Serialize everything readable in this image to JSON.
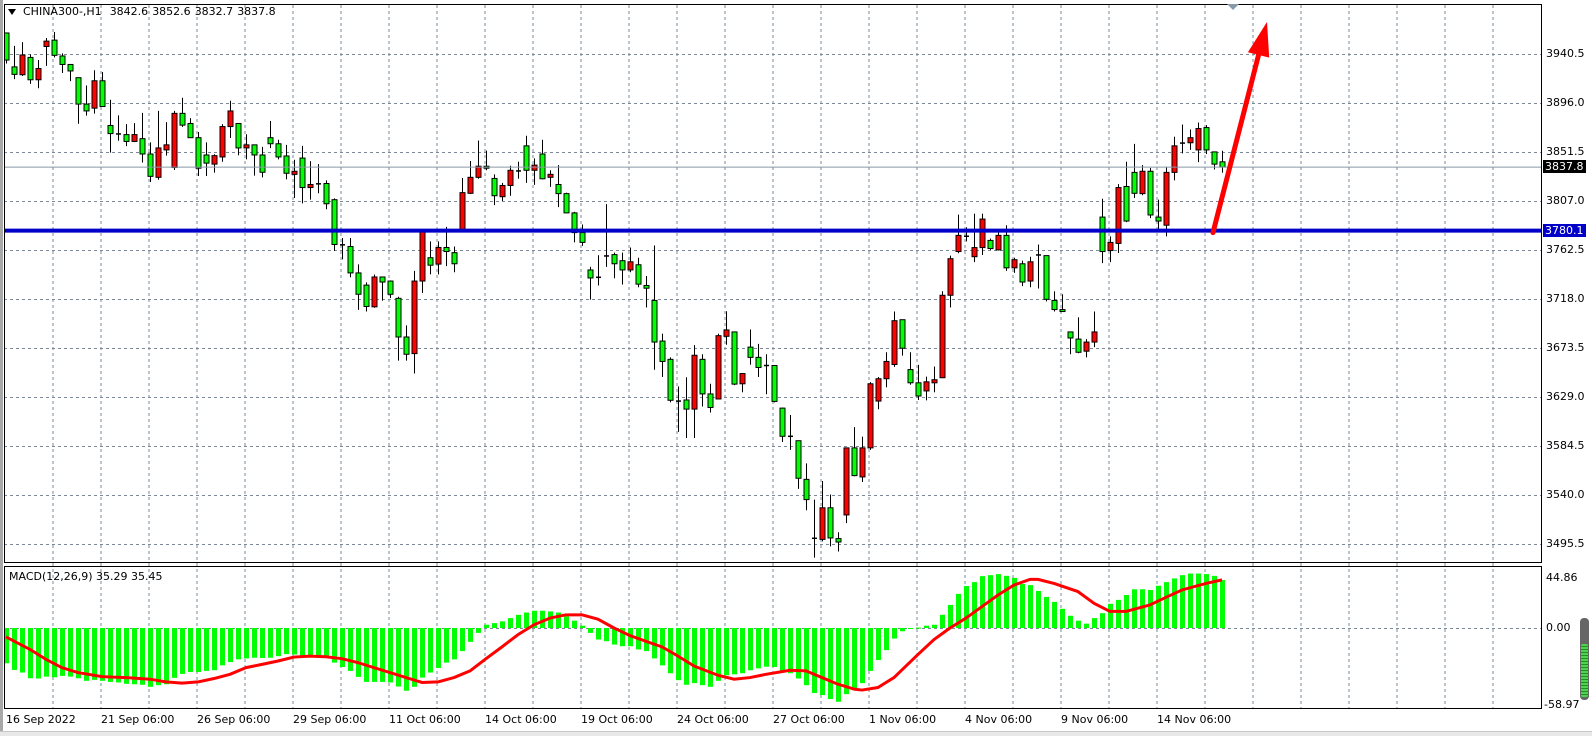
{
  "header": {
    "symbol_timeframe": "CHINA300-,H1",
    "open": "3842.6",
    "high": "3852.6",
    "low": "3832.7",
    "close": "3837.8"
  },
  "price_axis": {
    "labels": [
      "3940.5",
      "3896.0",
      "3851.5",
      "3807.0",
      "3762.5",
      "3718.0",
      "3673.5",
      "3629.0",
      "3584.5",
      "3540.0",
      "3495.5"
    ]
  },
  "current_price": {
    "value": 3837.8,
    "label": "3837.8"
  },
  "horizontal_line": {
    "value": 3780.1,
    "label": "3780.1",
    "color": "#0000c8"
  },
  "macd": {
    "label": "MACD(12,26,9)",
    "main_value": "35.29",
    "signal_value": "35.45",
    "axis_labels": [
      "44.86",
      "0.00",
      "-58.97"
    ],
    "max": 44.86,
    "min": -58.97
  },
  "time_labels": [
    "16 Sep 2022",
    "21 Sep 06:00",
    "26 Sep 06:00",
    "29 Sep 06:00",
    "11 Oct 06:00",
    "14 Oct 06:00",
    "19 Oct 06:00",
    "24 Oct 06:00",
    "27 Oct 06:00",
    "1 Nov 06:00",
    "4 Nov 06:00",
    "9 Nov 06:00",
    "14 Nov 06:00"
  ],
  "colors": {
    "bull_candle": "#ff0000",
    "bear_candle": "#00ff00",
    "histogram": "#00ff00",
    "signal_line": "#ff0000",
    "grid": "#7a8898",
    "current_price_line": "#8a98a8",
    "arrow": "#ff0000"
  },
  "annotations": {
    "arrow": "red up arrow from horizontal line",
    "arrow_color": "#ff0000"
  },
  "chart_data": {
    "type": "candlestick",
    "symbol": "CHINA300-",
    "timeframe": "H1",
    "y_range": [
      3495.5,
      3940.5
    ],
    "grid": true,
    "candles_ohlc": [
      [
        3959.6,
        3960,
        3931.9,
        3935
      ],
      [
        3928.8,
        3947.9,
        3917.7,
        3922.0
      ],
      [
        3921.7,
        3951.3,
        3920.5,
        3939.6
      ],
      [
        3937.4,
        3940.2,
        3913.4,
        3917.1
      ],
      [
        3917.1,
        3935,
        3909.4,
        3927.3
      ],
      [
        3947.3,
        3955,
        3929.7,
        3952.2
      ],
      [
        3953.1,
        3960.5,
        3937.4,
        3939.3
      ],
      [
        3938.7,
        3941.1,
        3923.3,
        3931
      ],
      [
        3931,
        3931,
        3915.9,
        3925.1
      ],
      [
        3919,
        3919,
        3877.1,
        3895
      ],
      [
        3895,
        3911.9,
        3884.5,
        3888.8
      ],
      [
        3891.3,
        3925.7,
        3886.3,
        3916.2
      ],
      [
        3916.2,
        3924.2,
        3892.8,
        3892.8
      ],
      [
        3875.6,
        3899,
        3850.9,
        3868.2
      ],
      [
        3867.9,
        3884.8,
        3861.7,
        3867.9
      ],
      [
        3867.3,
        3876.8,
        3856.8,
        3861.1
      ],
      [
        3861.1,
        3877.7,
        3860.5,
        3867.3
      ],
      [
        3863.6,
        3887,
        3842,
        3849.7
      ],
      [
        3849.7,
        3860.2,
        3824.2,
        3829.4
      ],
      [
        3828.5,
        3888.8,
        3826.3,
        3855.2
      ],
      [
        3853.4,
        3878.6,
        3848.2,
        3858
      ],
      [
        3837.4,
        3888.8,
        3835.2,
        3886.6
      ],
      [
        3886.6,
        3900.8,
        3874.3,
        3875.9
      ],
      [
        3877.4,
        3882.3,
        3864.5,
        3864.5
      ],
      [
        3864.5,
        3869.7,
        3829.7,
        3836.8
      ],
      [
        3848.8,
        3860.2,
        3829.7,
        3841.4
      ],
      [
        3840.5,
        3849.4,
        3832.8,
        3848.2
      ],
      [
        3847,
        3876.8,
        3842.6,
        3874.6
      ],
      [
        3874.6,
        3898,
        3864.2,
        3888.8
      ],
      [
        3877.4,
        3877.4,
        3848.5,
        3855.2
      ],
      [
        3855.2,
        3867.6,
        3844.8,
        3858
      ],
      [
        3858,
        3858,
        3830,
        3848.8
      ],
      [
        3848.8,
        3856.2,
        3828.5,
        3833.1
      ],
      [
        3864.5,
        3879.6,
        3855,
        3859
      ],
      [
        3859,
        3862.6,
        3844.8,
        3847
      ],
      [
        3847.9,
        3858,
        3826.6,
        3832.2
      ],
      [
        3831.2,
        3844.5,
        3809.7,
        3834
      ],
      [
        3846,
        3857.1,
        3804.8,
        3819.2
      ],
      [
        3819.2,
        3843.2,
        3808.2,
        3822
      ],
      [
        3822.6,
        3840.5,
        3814,
        3822.6
      ],
      [
        3822.9,
        3825.7,
        3799.5,
        3804.5
      ],
      [
        3808.2,
        3809.4,
        3761.7,
        3767.5
      ],
      [
        3767.2,
        3773.4,
        3754,
        3767.2
      ],
      [
        3765.7,
        3773.4,
        3737.7,
        3741.7
      ],
      [
        3741.7,
        3749.4,
        3708.1,
        3722.3
      ],
      [
        3730.6,
        3733.1,
        3706.6,
        3711.2
      ],
      [
        3710.9,
        3740.1,
        3710,
        3738
      ],
      [
        3738,
        3738,
        3716.4,
        3733.4
      ],
      [
        3734.3,
        3734.9,
        3718.9,
        3722.3
      ],
      [
        3718.6,
        3720.1,
        3662,
        3683.5
      ],
      [
        3683.5,
        3694,
        3662,
        3667.8
      ],
      [
        3668.4,
        3743.5,
        3650.3,
        3734.3
      ],
      [
        3734.3,
        3781.1,
        3723.5,
        3779.5
      ],
      [
        3755.5,
        3770.3,
        3740.4,
        3748.7
      ],
      [
        3749.7,
        3770.3,
        3740.4,
        3764.8
      ],
      [
        3764.8,
        3783.5,
        3747.8,
        3761.1
      ],
      [
        3760.1,
        3765.7,
        3742.3,
        3750
      ],
      [
        3781.1,
        3827.9,
        3781.1,
        3814.6
      ],
      [
        3814,
        3843.3,
        3813.4,
        3828.5
      ],
      [
        3828.5,
        3862,
        3827.2,
        3838.6
      ],
      [
        3838.6,
        3852.8,
        3834.9,
        3836.8
      ],
      [
        3827.5,
        3831.2,
        3803.2,
        3811.8
      ],
      [
        3810.9,
        3823.5,
        3807,
        3821.1
      ],
      [
        3821.1,
        3839,
        3811.8,
        3834.9
      ],
      [
        3834.3,
        3842.6,
        3827.2,
        3834.3
      ],
      [
        3857.1,
        3866.3,
        3823.5,
        3834.9
      ],
      [
        3834.9,
        3845.7,
        3821.7,
        3839.6
      ],
      [
        3849.7,
        3862.6,
        3826.6,
        3827.2
      ],
      [
        3828.5,
        3834.9,
        3819.8,
        3831.2
      ],
      [
        3822,
        3839.6,
        3801.4,
        3813.7
      ],
      [
        3813.7,
        3814.6,
        3796.2,
        3796.2
      ],
      [
        3796.2,
        3797.1,
        3769.4,
        3778.3
      ],
      [
        3778.3,
        3785.7,
        3766.3,
        3769.4
      ],
      [
        3744.4,
        3747.2,
        3717.4,
        3737.1
      ],
      [
        3737.7,
        3757.7,
        3730.3,
        3737.7
      ],
      [
        3757.1,
        3804.2,
        3747.2,
        3757.1
      ],
      [
        3758.3,
        3760.1,
        3736.8,
        3750
      ],
      [
        3752.8,
        3760.1,
        3731.2,
        3744.4
      ],
      [
        3744.4,
        3764.8,
        3742.3,
        3751.8
      ],
      [
        3749.1,
        3755.5,
        3728.7,
        3731.5
      ],
      [
        3730.3,
        3738.9,
        3710.3,
        3727.8
      ],
      [
        3716.7,
        3766.6,
        3653.7,
        3678.9
      ],
      [
        3679.8,
        3686.6,
        3647.2,
        3661.3
      ],
      [
        3663.2,
        3665,
        3624.1,
        3626
      ],
      [
        3625.3,
        3638.6,
        3597.3,
        3625.3
      ],
      [
        3626.3,
        3646.9,
        3591.8,
        3618
      ],
      [
        3618,
        3676.1,
        3591.8,
        3666.9
      ],
      [
        3663.2,
        3667.8,
        3620.4,
        3631.8
      ],
      [
        3631.8,
        3641,
        3614.9,
        3619.5
      ],
      [
        3627.2,
        3686.6,
        3627.2,
        3684.7
      ],
      [
        3684.1,
        3706.9,
        3676.4,
        3689.9
      ],
      [
        3688.1,
        3688.1,
        3639.8,
        3640.7
      ],
      [
        3641,
        3650.3,
        3633.3,
        3650.3
      ],
      [
        3674.3,
        3690.3,
        3658.3,
        3665
      ],
      [
        3665,
        3677.3,
        3647.2,
        3655.8
      ],
      [
        3657.6,
        3667.8,
        3631.5,
        3657.6
      ],
      [
        3657.6,
        3657.6,
        3624.1,
        3625
      ],
      [
        3618.9,
        3619.5,
        3588.1,
        3593.3
      ],
      [
        3593.3,
        3612.7,
        3581,
        3593.3
      ],
      [
        3589.3,
        3589.3,
        3545.6,
        3555.2
      ],
      [
        3554.2,
        3568.7,
        3526.2,
        3535.8
      ],
      [
        3500.7,
        3535.8,
        3483.1,
        3500.7
      ],
      [
        3499.7,
        3552.7,
        3497.9,
        3528.4
      ],
      [
        3528.4,
        3540.4,
        3493.3,
        3501
      ],
      [
        3500.4,
        3506.2,
        3488.7,
        3497.3
      ],
      [
        3521.9,
        3582.8,
        3514.5,
        3582.8
      ],
      [
        3582.8,
        3601.6,
        3557,
        3557.6
      ],
      [
        3556.4,
        3593,
        3551.8,
        3582.8
      ],
      [
        3582.8,
        3642.5,
        3581,
        3641
      ],
      [
        3625.3,
        3647.2,
        3617.9,
        3645.6
      ],
      [
        3645.6,
        3669.6,
        3637.9,
        3661.3
      ],
      [
        3658.5,
        3706.6,
        3656.4,
        3698.3
      ],
      [
        3699.2,
        3699.2,
        3666.6,
        3673.3
      ],
      [
        3653.9,
        3669.6,
        3640.1,
        3641.9
      ],
      [
        3641.9,
        3658.2,
        3626.3,
        3629.9
      ],
      [
        3634.5,
        3647.5,
        3625.9,
        3642.8
      ],
      [
        3641.9,
        3656.7,
        3633.3,
        3644.7
      ],
      [
        3646.5,
        3725,
        3646.5,
        3721.4
      ],
      [
        3721.4,
        3757.4,
        3710.3,
        3754.6
      ],
      [
        3761.1,
        3794.6,
        3759.5,
        3775.8
      ],
      [
        3775,
        3783.2,
        3770.3,
        3775
      ],
      [
        3756.4,
        3795.5,
        3751.5,
        3764.7
      ],
      [
        3764.7,
        3795.5,
        3758,
        3790.6
      ],
      [
        3771.2,
        3773,
        3762.6,
        3763.8
      ],
      [
        3762.6,
        3780.4,
        3762,
        3775.8
      ],
      [
        3775.8,
        3785,
        3743.5,
        3746.3
      ],
      [
        3746.3,
        3755.5,
        3741.7,
        3753.7
      ],
      [
        3750,
        3752.8,
        3729.7,
        3733.4
      ],
      [
        3734.3,
        3756.4,
        3728.7,
        3751.8
      ],
      [
        3758,
        3767.5,
        3727.5,
        3758
      ],
      [
        3757.4,
        3757.4,
        3715.8,
        3717.7
      ],
      [
        3716.7,
        3725,
        3706.6,
        3708.4
      ],
      [
        3708.4,
        3722.3,
        3706.6,
        3706.6
      ],
      [
        3688.1,
        3688.1,
        3667.8,
        3682.6
      ],
      [
        3681.6,
        3701.4,
        3668.7,
        3669.6
      ],
      [
        3670.6,
        3681.6,
        3665,
        3678.9
      ],
      [
        3678.9,
        3706.6,
        3674.3,
        3688.1
      ],
      [
        3792.4,
        3809.1,
        3750.6,
        3761.1
      ],
      [
        3762,
        3774.9,
        3751.5,
        3769.4
      ],
      [
        3768.5,
        3822.3,
        3759.8,
        3819.2
      ],
      [
        3820.2,
        3842.6,
        3787.8,
        3788.8
      ],
      [
        3833,
        3858.9,
        3809.7,
        3814
      ],
      [
        3813.7,
        3839.6,
        3812.2,
        3834
      ],
      [
        3834,
        3837.1,
        3791.5,
        3794.3
      ],
      [
        3792.4,
        3808.2,
        3780.4,
        3788.8
      ],
      [
        3785,
        3837.7,
        3774.9,
        3833
      ],
      [
        3833,
        3865.4,
        3825.7,
        3857.1
      ],
      [
        3859.6,
        3876.5,
        3850.3,
        3859.6
      ],
      [
        3859.9,
        3871.9,
        3853.4,
        3864.5
      ],
      [
        3853.4,
        3878.3,
        3842.3,
        3872.8
      ],
      [
        3873.7,
        3875.9,
        3849.7,
        3853.4
      ],
      [
        3851.6,
        3851.6,
        3835.6,
        3840.5
      ],
      [
        3842.6,
        3852.6,
        3832.7,
        3837.8
      ]
    ],
    "macd_histogram": [
      -26.0,
      -30.9,
      -32.8,
      -37.0,
      -37.2,
      -35.8,
      -36.3,
      -35.3,
      -35.8,
      -37.0,
      -38.9,
      -38.2,
      -38.9,
      -39.7,
      -40.1,
      -41.1,
      -41.4,
      -41.8,
      -43.3,
      -42.1,
      -41.4,
      -36.7,
      -33.8,
      -32.4,
      -32.4,
      -31.6,
      -31.1,
      -27.5,
      -25.1,
      -23.1,
      -22.4,
      -21.9,
      -22.1,
      -21.9,
      -20.7,
      -19.2,
      -19.5,
      -20.9,
      -21.4,
      -21.9,
      -21.9,
      -25.5,
      -28.7,
      -31.6,
      -36.0,
      -39.7,
      -39.7,
      -39.7,
      -40.1,
      -43.1,
      -46.2,
      -43.3,
      -36.5,
      -32.8,
      -29.4,
      -25.5,
      -23.1,
      -17.0,
      -10.2,
      -3.6,
      2.4,
      3.6,
      4.9,
      7.3,
      9.7,
      11.4,
      12.7,
      12.7,
      12.2,
      11.4,
      8.5,
      5.4,
      1.7,
      -3.6,
      -8.5,
      -9.7,
      -12.2,
      -13.4,
      -13.4,
      -15.8,
      -17.0,
      -22.4,
      -27.5,
      -33.3,
      -38.4,
      -41.8,
      -40.6,
      -42.1,
      -43.3,
      -38.9,
      -34.8,
      -34.1,
      -33.3,
      -31.1,
      -29.7,
      -28.5,
      -28.7,
      -32.1,
      -33.3,
      -37.2,
      -42.1,
      -47.9,
      -49.4,
      -52.3,
      -54.3,
      -48.7,
      -45.0,
      -40.6,
      -31.6,
      -23.6,
      -16.3,
      -7.8,
      -2.4,
      -0.7,
      0.3,
      1.7,
      2.4,
      9.7,
      17.0,
      25.1,
      30.9,
      33.8,
      38.2,
      38.9,
      39.7,
      38.4,
      36.9,
      32.4,
      31.6,
      27.3,
      22.9,
      19.2,
      14.1,
      9.0,
      5.4,
      3.2,
      7.3,
      10.9,
      17.8,
      20.7,
      24.3,
      28.5,
      28.5,
      28.0,
      31.1,
      33.8,
      36.5,
      38.9,
      40.1,
      40.1,
      39.7,
      38.4,
      35.29
    ],
    "macd_signal_points": [
      [
        0,
        -6.6
      ],
      [
        3,
        -15.8
      ],
      [
        5,
        -23.1
      ],
      [
        7,
        -29.2
      ],
      [
        9,
        -32.8
      ],
      [
        12,
        -35.8
      ],
      [
        15,
        -36.5
      ],
      [
        18,
        -37.7
      ],
      [
        20,
        -39.7
      ],
      [
        22,
        -40.6
      ],
      [
        24,
        -39.7
      ],
      [
        26,
        -37.2
      ],
      [
        28,
        -34.1
      ],
      [
        30,
        -29.2
      ],
      [
        32,
        -26.8
      ],
      [
        34,
        -24.3
      ],
      [
        36,
        -21.4
      ],
      [
        38,
        -20.7
      ],
      [
        40,
        -21.2
      ],
      [
        42,
        -22.6
      ],
      [
        44,
        -25.5
      ],
      [
        46,
        -29.2
      ],
      [
        48,
        -32.8
      ],
      [
        50,
        -36.5
      ],
      [
        52,
        -40.1
      ],
      [
        54,
        -39.7
      ],
      [
        56,
        -36.5
      ],
      [
        58,
        -31.6
      ],
      [
        60,
        -22.6
      ],
      [
        62,
        -13.9
      ],
      [
        64,
        -4.9
      ],
      [
        66,
        2.4
      ],
      [
        68,
        7.3
      ],
      [
        70,
        9.7
      ],
      [
        72,
        9.7
      ],
      [
        74,
        6.5
      ],
      [
        76,
        0
      ],
      [
        78,
        -5.6
      ],
      [
        80,
        -9.8
      ],
      [
        82,
        -13.9
      ],
      [
        84,
        -20.7
      ],
      [
        86,
        -28.0
      ],
      [
        89,
        -34.8
      ],
      [
        91,
        -37.7
      ],
      [
        93,
        -36.5
      ],
      [
        95,
        -34.1
      ],
      [
        98,
        -31.1
      ],
      [
        100,
        -31.6
      ],
      [
        102,
        -36.5
      ],
      [
        104,
        -41.4
      ],
      [
        106,
        -45.0
      ],
      [
        107,
        -45.7
      ],
      [
        109,
        -43.8
      ],
      [
        111,
        -36.5
      ],
      [
        114,
        -19.5
      ],
      [
        116,
        -8.5
      ],
      [
        118,
        0
      ],
      [
        120,
        7.3
      ],
      [
        122,
        15.8
      ],
      [
        124,
        24.3
      ],
      [
        126,
        31.6
      ],
      [
        128,
        35.8
      ],
      [
        129,
        35.8
      ],
      [
        131,
        32.8
      ],
      [
        134,
        26.8
      ],
      [
        136,
        18.2
      ],
      [
        138,
        12.2
      ],
      [
        140,
        12.2
      ],
      [
        143,
        17.0
      ],
      [
        145,
        22.6
      ],
      [
        147,
        28.0
      ],
      [
        150,
        32.8
      ],
      [
        152,
        35.45
      ]
    ]
  }
}
